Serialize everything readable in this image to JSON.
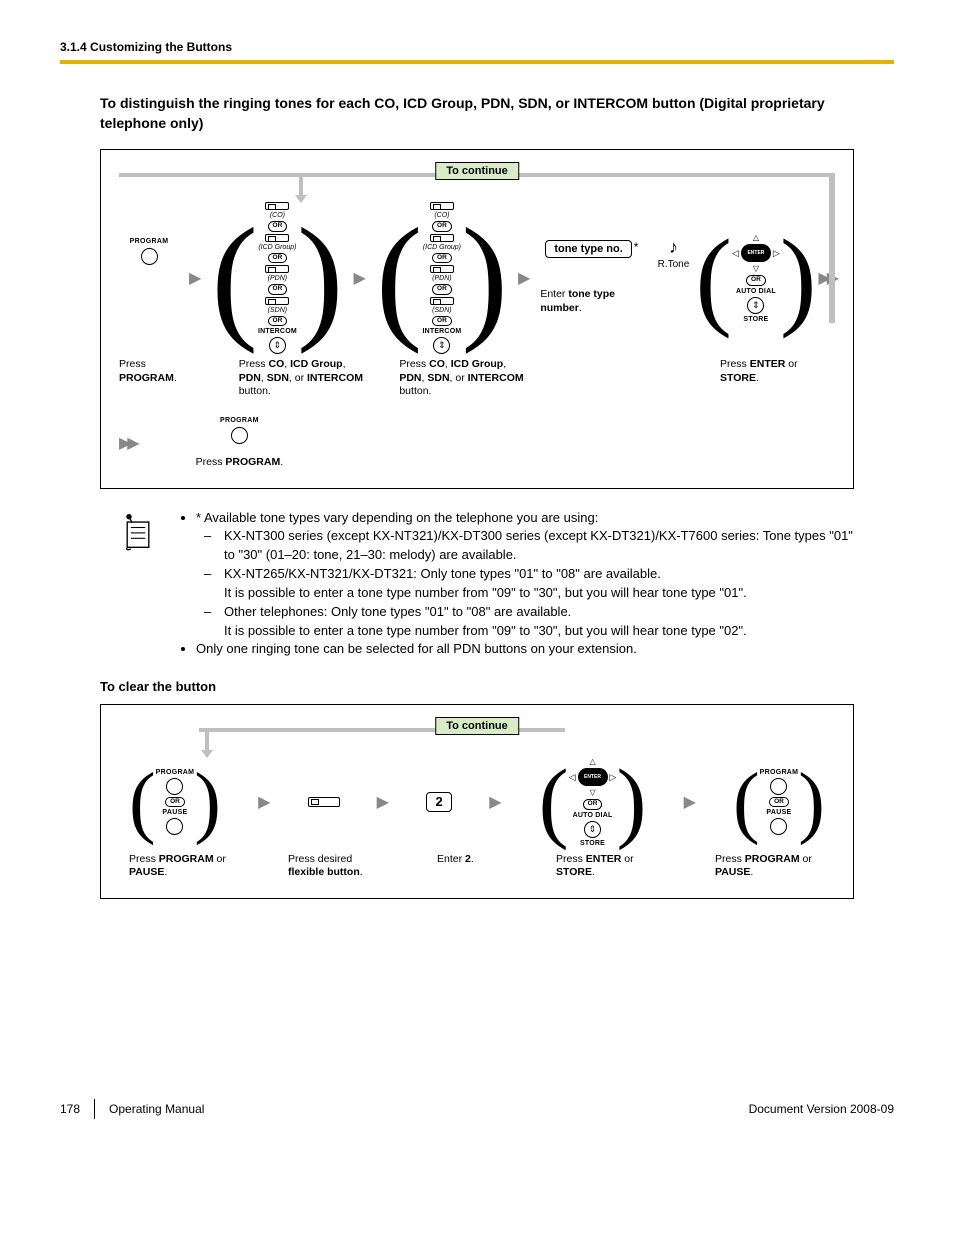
{
  "header": {
    "section": "3.1.4 Customizing the Buttons"
  },
  "heading1": "To distinguish the ringing tones for each CO, ICD Group, PDN, SDN, or INTERCOM button (Digital proprietary telephone only)",
  "continue_label": "To continue",
  "labels": {
    "program": "PROGRAM",
    "or": "OR",
    "co": "(CO)",
    "icd": "(ICD Group)",
    "pdn": "(PDN)",
    "sdn": "(SDN)",
    "intercom": "INTERCOM",
    "pause": "PAUSE",
    "auto_dial": "AUTO DIAL",
    "store": "STORE",
    "rtone": "R.Tone",
    "tone_type_no": "tone type no.",
    "two": "2"
  },
  "captions": {
    "press_program": "Press\nPROGRAM.",
    "press_program_html": "Press <b>PROGRAM</b>.",
    "press_co_group": "Press <b>CO</b>, <b>ICD Group</b>, <b>PDN</b>, <b>SDN</b>, or <b>INTERCOM</b> button.",
    "enter_tone": "Enter <b>tone type number</b>.",
    "press_enter_store": "Press <b>ENTER</b> or <b>STORE</b>.",
    "press_prog_pause": "Press <b>PROGRAM</b> or <b>PAUSE</b>.",
    "press_flexible": "Press desired <b>flexible button</b>.",
    "enter_2": "Enter <b>2</b>."
  },
  "notes": {
    "line1": "* Available tone types vary depending on the telephone you are using:",
    "sub1": "KX-NT300 series (except KX-NT321)/KX-DT300 series (except KX-DT321)/KX-T7600 series: Tone types \"01\" to \"30\" (01–20: tone, 21–30: melody) are available.",
    "sub2": "KX-NT265/KX-NT321/KX-DT321: Only tone types \"01\" to \"08\" are available.",
    "sub2b": "It is possible to enter a tone type number from \"09\" to \"30\", but you will hear tone type \"01\".",
    "sub3": "Other telephones: Only tone types \"01\" to \"08\" are available.",
    "sub3b": "It is possible to enter a tone type number from \"09\" to \"30\", but you will hear tone type \"02\".",
    "line2": "Only one ringing tone can be selected for all PDN buttons on your extension."
  },
  "heading2": "To clear the button",
  "footer": {
    "page": "178",
    "manual": "Operating Manual",
    "docver": "Document Version  2008-09"
  }
}
